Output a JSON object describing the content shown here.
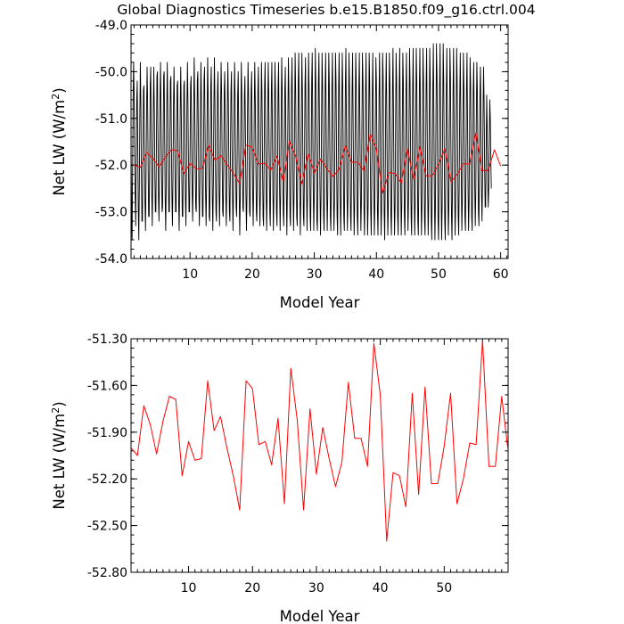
{
  "figure": {
    "title": "Global Diagnostics Timeseries b.e15.B1850.f09_g16.ctrl.004"
  },
  "chart_data": [
    {
      "type": "line",
      "title": "Global Diagnostics Timeseries b.e15.B1850.f09_g16.ctrl.004",
      "xlabel": "Model Year",
      "ylabel": "Net LW (W/m²)",
      "ylabel_main": "Net LW (W/m",
      "ylabel_sup": "2",
      "ylabel_close": ")",
      "xlim": [
        0.5,
        61.2
      ],
      "ylim": [
        -54.0,
        -49.0
      ],
      "xticks": [
        10,
        20,
        30,
        40,
        50,
        60
      ],
      "yticks": [
        -54.0,
        -53.0,
        -52.0,
        -51.0,
        -50.0,
        -49.0
      ],
      "ytick_labels": [
        "-54.0",
        "-53.0",
        "-52.0",
        "-51.0",
        "-50.0",
        "-49.0"
      ],
      "grid": false,
      "series": [
        {
          "kind": "monthly",
          "color": "#000000",
          "x_start": 0.5,
          "x_step": 0.0833333,
          "values": [
            -51.5,
            -52.9,
            -53.6,
            -52.1,
            -50.6,
            -49.8,
            -50.5,
            -51.8,
            -52.7,
            -53.3,
            -52.0,
            -50.6,
            -50.2,
            -51.6,
            -52.9,
            -53.6,
            -52.5,
            -50.9,
            -49.8,
            -50.7,
            -52.1,
            -53.2,
            -53.2,
            -51.7,
            -50.4,
            -50.3,
            -51.6,
            -52.8,
            -53.4,
            -52.3,
            -50.9,
            -49.9,
            -50.6,
            -52.0,
            -53.1,
            -53.1,
            -51.8,
            -50.3,
            -49.9,
            -51.3,
            -52.6,
            -53.3,
            -52.3,
            -50.8,
            -49.9,
            -50.8,
            -52.2,
            -53.0,
            -53.0,
            -51.6,
            -50.1,
            -50.0,
            -51.4,
            -52.7,
            -53.2,
            -52.2,
            -50.6,
            -49.8,
            -50.8,
            -52.1,
            -53.0,
            -52.9,
            -51.6,
            -50.1,
            -50.0,
            -51.5,
            -52.8,
            -53.4,
            -52.3,
            -50.7,
            -49.8,
            -50.8,
            -52.2,
            -53.0,
            -53.0,
            -51.6,
            -50.2,
            -50.1,
            -51.5,
            -52.7,
            -53.3,
            -52.3,
            -50.7,
            -49.9,
            -50.8,
            -52.2,
            -53.0,
            -53.0,
            -51.7,
            -50.3,
            -50.2,
            -51.5,
            -52.8,
            -53.4,
            -52.4,
            -50.8,
            -49.9,
            -50.8,
            -52.2,
            -53.1,
            -53.1,
            -51.7,
            -50.3,
            -50.2,
            -51.5,
            -52.7,
            -53.3,
            -52.3,
            -50.7,
            -49.8,
            -50.7,
            -52.1,
            -53.0,
            -53.0,
            -51.7,
            -50.3,
            -50.1,
            -51.4,
            -52.6,
            -53.2,
            -52.3,
            -50.8,
            -49.7,
            -50.6,
            -52.0,
            -52.9,
            -53.0,
            -51.7,
            -50.2,
            -50.0,
            -51.3,
            -52.6,
            -53.3,
            -52.4,
            -50.8,
            -49.8,
            -50.6,
            -52.1,
            -53.1,
            -53.1,
            -51.8,
            -50.2,
            -49.9,
            -51.2,
            -52.6,
            -53.3,
            -52.4,
            -50.8,
            -49.7,
            -50.6,
            -52.0,
            -53.1,
            -53.2,
            -51.8,
            -50.3,
            -49.9,
            -51.3,
            -52.7,
            -53.4,
            -52.4,
            -50.7,
            -49.7,
            -50.6,
            -52.0,
            -53.0,
            -53.2,
            -51.9,
            -50.4,
            -50.0,
            -51.3,
            -52.6,
            -53.3,
            -52.4,
            -50.8,
            -49.8,
            -50.5,
            -51.9,
            -53.0,
            -53.1,
            -51.9,
            -50.4,
            -50.0,
            -51.3,
            -52.7,
            -53.3,
            -52.4,
            -50.8,
            -49.8,
            -50.6,
            -52.0,
            -53.0,
            -53.2,
            -51.9,
            -50.4,
            -50.0,
            -51.3,
            -52.7,
            -53.4,
            -52.5,
            -50.9,
            -49.8,
            -50.5,
            -51.9,
            -52.9,
            -53.1,
            -51.9,
            -50.5,
            -50.0,
            -51.3,
            -52.7,
            -53.5,
            -52.7,
            -51.0,
            -49.8,
            -50.5,
            -51.8,
            -52.9,
            -53.0,
            -51.9,
            -50.5,
            -50.1,
            -51.3,
            -52.7,
            -53.4,
            -52.6,
            -50.9,
            -49.8,
            -50.5,
            -51.9,
            -53.0,
            -53.1,
            -51.9,
            -50.4,
            -50.0,
            -51.3,
            -52.6,
            -53.3,
            -52.5,
            -50.9,
            -49.8,
            -50.6,
            -51.9,
            -53.0,
            -53.2,
            -52.0,
            -50.4,
            -49.9,
            -51.2,
            -52.6,
            -53.3,
            -52.6,
            -51.0,
            -49.8,
            -50.5,
            -51.9,
            -53.1,
            -53.3,
            -52.0,
            -50.3,
            -49.8,
            -51.2,
            -52.6,
            -53.4,
            -52.6,
            -51.0,
            -49.8,
            -50.4,
            -51.8,
            -53.0,
            -53.3,
            -52.0,
            -50.4,
            -49.8,
            -51.2,
            -52.6,
            -53.4,
            -52.6,
            -51.0,
            -49.8,
            -50.4,
            -51.9,
            -53.0,
            -53.3,
            -52.1,
            -50.4,
            -49.8,
            -51.2,
            -52.6,
            -53.4,
            -52.6,
            -51.0,
            -49.7,
            -50.4,
            -51.8,
            -53.0,
            -53.3,
            -52.1,
            -50.4,
            -49.9,
            -51.2,
            -52.6,
            -53.5,
            -52.6,
            -50.9,
            -49.7,
            -50.5,
            -51.9,
            -53.1,
            -53.3,
            -52.0,
            -50.3,
            -49.7,
            -51.1,
            -52.6,
            -53.4,
            -52.6,
            -50.9,
            -49.6,
            -50.4,
            -51.9,
            -53.1,
            -53.3,
            -52.0,
            -50.2,
            -49.6,
            -51.1,
            -52.6,
            -53.5,
            -52.7,
            -51.0,
            -49.6,
            -50.4,
            -51.9,
            -53.1,
            -53.3,
            -52.0,
            -50.3,
            -49.7,
            -51.1,
            -52.6,
            -53.4,
            -52.6,
            -50.9,
            -49.6,
            -50.4,
            -51.9,
            -53.1,
            -53.4,
            -52.0,
            -50.2,
            -49.6,
            -51.1,
            -52.6,
            -53.4,
            -52.6,
            -50.9,
            -49.5,
            -50.3,
            -51.9,
            -53.2,
            -53.4,
            -52.0,
            -50.2,
            -49.6,
            -51.1,
            -52.6,
            -53.5,
            -52.7,
            -51.0,
            -49.6,
            -50.3,
            -51.8,
            -53.1,
            -53.4,
            -52.1,
            -50.3,
            -49.6,
            -51.0,
            -52.5,
            -53.4,
            -52.7,
            -51.0,
            -49.6,
            -50.3,
            -51.8,
            -53.1,
            -53.4,
            -52.1,
            -50.3,
            -49.6,
            -51.0,
            -52.6,
            -53.4,
            -52.8,
            -51.0,
            -49.6,
            -50.2,
            -51.8,
            -53.1,
            -53.5,
            -52.1,
            -50.3,
            -49.6,
            -51.0,
            -52.6,
            -53.5,
            -52.7,
            -51.0,
            -49.6,
            -50.3,
            -51.8,
            -53.1,
            -53.4,
            -52.1,
            -50.3,
            -49.5,
            -51.0,
            -52.5,
            -53.4,
            -52.7,
            -51.0,
            -49.6,
            -50.3,
            -51.8,
            -53.1,
            -53.4,
            -52.2,
            -50.4,
            -49.6,
            -51.0,
            -52.6,
            -53.5,
            -52.8,
            -51.1,
            -49.6,
            -50.2,
            -51.7,
            -53.1,
            -53.5,
            -52.2,
            -50.4,
            -49.6,
            -51.0,
            -52.5,
            -53.4,
            -52.8,
            -51.1,
            -49.6,
            -50.2,
            -51.7,
            -53.0,
            -53.5,
            -52.3,
            -50.4,
            -49.6,
            -50.9,
            -52.5,
            -53.5,
            -52.9,
            -51.1,
            -49.6,
            -50.2,
            -51.7,
            -53.0,
            -53.5,
            -52.3,
            -50.5,
            -49.6,
            -50.9,
            -52.5,
            -53.5,
            -52.9,
            -51.2,
            -49.7,
            -50.2,
            -51.6,
            -53.0,
            -53.5,
            -52.4,
            -50.6,
            -49.6,
            -50.8,
            -52.4,
            -53.5,
            -53.0,
            -51.2,
            -49.6,
            -50.1,
            -51.6,
            -53.0,
            -53.6,
            -52.4,
            -50.5,
            -49.6,
            -50.9,
            -52.5,
            -53.5,
            -52.9,
            -51.1,
            -49.6,
            -50.2,
            -51.7,
            -53.1,
            -53.5,
            -52.3,
            -50.4,
            -49.5,
            -50.9,
            -52.5,
            -53.5,
            -52.9,
            -51.1,
            -49.6,
            -50.2,
            -51.7,
            -53.1,
            -53.5,
            -52.3,
            -50.4,
            -49.5,
            -50.9,
            -52.5,
            -53.5,
            -52.9,
            -51.1,
            -49.6,
            -50.2,
            -51.8,
            -53.1,
            -53.5,
            -52.2,
            -50.4,
            -49.6,
            -51.0,
            -52.5,
            -53.4,
            -52.8,
            -51.0,
            -49.5,
            -50.2,
            -51.7,
            -53.1,
            -53.5,
            -52.2,
            -50.3,
            -49.5,
            -51.0,
            -52.6,
            -53.5,
            -52.8,
            -51.0,
            -49.5,
            -50.2,
            -51.8,
            -53.2,
            -53.5,
            -52.2,
            -50.3,
            -49.5,
            -51.0,
            -52.6,
            -53.5,
            -52.8,
            -51.0,
            -49.5,
            -50.2,
            -51.8,
            -53.2,
            -53.5,
            -52.2,
            -50.3,
            -49.5,
            -51.0,
            -52.6,
            -53.5,
            -52.8,
            -51.0,
            -49.5,
            -50.2,
            -51.8,
            -53.2,
            -53.6,
            -52.2,
            -50.3,
            -49.4,
            -50.9,
            -52.6,
            -53.6,
            -52.9,
            -51.0,
            -49.4,
            -50.1,
            -51.8,
            -53.2,
            -53.6,
            -52.3,
            -50.3,
            -49.4,
            -50.9,
            -52.6,
            -53.6,
            -52.9,
            -51.0,
            -49.4,
            -50.2,
            -51.8,
            -53.2,
            -53.6,
            -52.3,
            -50.4,
            -49.5,
            -50.9,
            -52.5,
            -53.5,
            -52.9,
            -51.1,
            -49.5,
            -50.1,
            -51.7,
            -53.1,
            -53.6,
            -52.3,
            -50.4,
            -49.5,
            -50.9,
            -52.5,
            -53.5,
            -52.9,
            -51.1,
            -49.5,
            -50.2,
            -51.7,
            -53.1,
            -53.5,
            -52.3,
            -50.5,
            -49.6,
            -50.9,
            -52.4,
            -53.4,
            -52.8,
            -51.1,
            -49.6,
            -50.3,
            -51.8,
            -53.1,
            -53.4,
            -52.2,
            -50.4,
            -49.6,
            -51.0,
            -52.5,
            -53.4,
            -52.8,
            -51.1,
            -49.7,
            -50.3,
            -51.8,
            -53.1,
            -53.4,
            -52.1,
            -50.4,
            -49.8,
            -51.1,
            -52.5,
            -53.3,
            -52.6,
            -51.0,
            -49.8,
            -50.4,
            -51.8,
            -53.0,
            -53.3,
            -52.0,
            -50.4,
            -49.9,
            -51.3,
            -52.6,
            -53.2,
            -52.4,
            -50.9,
            -49.9,
            -50.6,
            -52.0,
            -52.9,
            -52.9,
            -51.6,
            -50.5,
            -51.2,
            -52.3,
            -52.9,
            -52.5,
            -51.5,
            -50.6,
            -51.0,
            -51.9,
            -52.5
          ]
        },
        {
          "kind": "annual",
          "color": "#ff0000",
          "x": [
            1,
            2,
            3,
            4,
            5,
            6,
            7,
            8,
            9,
            10,
            11,
            12,
            13,
            14,
            15,
            16,
            17,
            18,
            19,
            20,
            21,
            22,
            23,
            24,
            25,
            26,
            27,
            28,
            29,
            30,
            31,
            32,
            33,
            34,
            35,
            36,
            37,
            38,
            39,
            40,
            41,
            42,
            43,
            44,
            45,
            46,
            47,
            48,
            49,
            50,
            51,
            52,
            53,
            54,
            55,
            56,
            57,
            58,
            59,
            60
          ],
          "values": [
            -52.0,
            -52.05,
            -51.73,
            -51.85,
            -52.04,
            -51.83,
            -51.67,
            -51.69,
            -52.18,
            -51.96,
            -52.08,
            -52.07,
            -51.57,
            -51.89,
            -51.8,
            -52.0,
            -52.18,
            -52.4,
            -51.57,
            -51.62,
            -51.98,
            -51.96,
            -52.11,
            -51.81,
            -52.36,
            -51.49,
            -51.82,
            -52.4,
            -51.75,
            -52.17,
            -51.87,
            -52.07,
            -52.25,
            -52.09,
            -51.58,
            -51.94,
            -51.94,
            -52.12,
            -51.33,
            -51.66,
            -52.6,
            -52.16,
            -52.18,
            -52.38,
            -51.65,
            -52.3,
            -51.61,
            -52.23,
            -52.23,
            -51.99,
            -51.65,
            -52.36,
            -52.2,
            -51.97,
            -51.98,
            -51.31,
            -52.12,
            -52.12,
            -51.67,
            -52.02
          ]
        }
      ]
    },
    {
      "type": "line",
      "title": "",
      "xlabel": "Model Year",
      "ylabel": "Net LW (W/m²)",
      "ylabel_main": "Net LW (W/m",
      "ylabel_sup": "2",
      "ylabel_close": ")",
      "xlim": [
        1,
        60
      ],
      "ylim": [
        -52.8,
        -51.3
      ],
      "xticks": [
        10,
        20,
        30,
        40,
        50
      ],
      "yticks": [
        -52.8,
        -52.5,
        -52.2,
        -51.9,
        -51.6,
        -51.3
      ],
      "ytick_labels": [
        "-52.80",
        "-52.50",
        "-52.20",
        "-51.90",
        "-51.60",
        "-51.30"
      ],
      "grid": false,
      "series": [
        {
          "kind": "annual",
          "color": "#ff0000",
          "x": [
            1,
            2,
            3,
            4,
            5,
            6,
            7,
            8,
            9,
            10,
            11,
            12,
            13,
            14,
            15,
            16,
            17,
            18,
            19,
            20,
            21,
            22,
            23,
            24,
            25,
            26,
            27,
            28,
            29,
            30,
            31,
            32,
            33,
            34,
            35,
            36,
            37,
            38,
            39,
            40,
            41,
            42,
            43,
            44,
            45,
            46,
            47,
            48,
            49,
            50,
            51,
            52,
            53,
            54,
            55,
            56,
            57,
            58,
            59,
            60
          ],
          "values": [
            -52.0,
            -52.05,
            -51.73,
            -51.85,
            -52.04,
            -51.83,
            -51.67,
            -51.69,
            -52.18,
            -51.96,
            -52.08,
            -52.07,
            -51.57,
            -51.89,
            -51.8,
            -52.0,
            -52.18,
            -52.4,
            -51.57,
            -51.62,
            -51.98,
            -51.96,
            -52.11,
            -51.81,
            -52.36,
            -51.49,
            -51.82,
            -52.4,
            -51.75,
            -52.17,
            -51.87,
            -52.07,
            -52.25,
            -52.09,
            -51.58,
            -51.94,
            -51.94,
            -52.12,
            -51.33,
            -51.66,
            -52.6,
            -52.16,
            -52.18,
            -52.38,
            -51.65,
            -52.3,
            -51.61,
            -52.23,
            -52.23,
            -51.99,
            -51.65,
            -52.36,
            -52.2,
            -51.97,
            -51.98,
            -51.31,
            -52.12,
            -52.12,
            -51.67,
            -52.02
          ]
        }
      ]
    }
  ]
}
